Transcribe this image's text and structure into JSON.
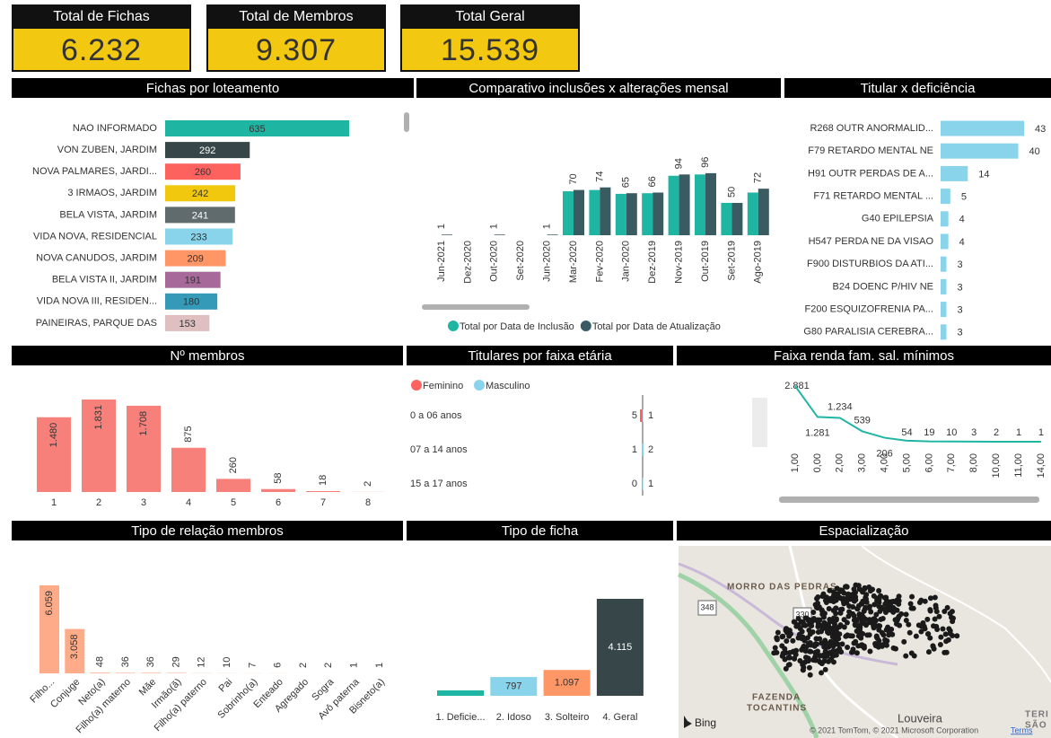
{
  "cards": [
    {
      "title": "Total de Fichas",
      "value": "6.232"
    },
    {
      "title": "Total de Membros",
      "value": "9.307"
    },
    {
      "title": "Total Geral",
      "value": "15.539"
    }
  ],
  "chart_data": [
    {
      "type": "bar",
      "orientation": "horizontal",
      "title": "Fichas por loteamento",
      "categories": [
        "NAO INFORMADO",
        "VON ZUBEN, JARDIM",
        "NOVA PALMARES, JARDI...",
        "3 IRMAOS, JARDIM",
        "BELA VISTA, JARDIM",
        "VIDA NOVA, RESIDENCIAL",
        "NOVA CANUDOS, JARDIM",
        "BELA VISTA II, JARDIM",
        "VIDA NOVA III, RESIDEN...",
        "PAINEIRAS, PARQUE DAS"
      ],
      "values": [
        635,
        292,
        260,
        242,
        241,
        233,
        209,
        191,
        180,
        153
      ],
      "colors": [
        "#1fb5a3",
        "#374649",
        "#fd625e",
        "#f2c80f",
        "#5f6b6d",
        "#8ad4eb",
        "#fe9666",
        "#a66999",
        "#3599b8",
        "#dfbfbf"
      ]
    },
    {
      "type": "bar",
      "orientation": "vertical",
      "title": "Comparativo inclusões x alterações mensal",
      "categories": [
        "Jun-2021",
        "Dez-2020",
        "Out-2020",
        "Set-2020",
        "Jun-2020",
        "Mar-2020",
        "Fev-2020",
        "Jan-2020",
        "Dez-2019",
        "Nov-2019",
        "Out-2019",
        "Set-2019",
        "Ago-2019"
      ],
      "series": [
        {
          "name": "Total por Data de Inclusão",
          "color": "#1fb5a3",
          "values": [
            null,
            null,
            null,
            null,
            null,
            68,
            70,
            64,
            65,
            92,
            94,
            50,
            66
          ]
        },
        {
          "name": "Total por Data de Atualização",
          "color": "#3b5b63",
          "values": [
            1,
            null,
            1,
            null,
            1,
            70,
            74,
            65,
            66,
            94,
            96,
            50,
            72
          ]
        }
      ],
      "legend": "bottom"
    },
    {
      "type": "bar",
      "orientation": "horizontal",
      "title": "Titular x deficiência",
      "categories": [
        "R268 OUTR ANORMALID...",
        "F79 RETARDO MENTAL NE",
        "H91 OUTR PERDAS DE A...",
        "F71 RETARDO MENTAL ...",
        "G40 EPILEPSIA",
        "H547 PERDA NE DA VISAO",
        "F900 DISTURBIOS DA ATI...",
        "B24 DOENC P/HIV NE",
        "F200 ESQUIZOFRENIA PA...",
        "G80 PARALISIA CEREBRA..."
      ],
      "values": [
        43,
        40,
        14,
        5,
        4,
        4,
        3,
        3,
        3,
        3
      ],
      "color": "#8ad4eb"
    },
    {
      "type": "bar",
      "orientation": "vertical",
      "title": "Nº membros",
      "categories": [
        "1",
        "2",
        "3",
        "4",
        "5",
        "6",
        "7",
        "8"
      ],
      "values": [
        1480,
        1831,
        1708,
        875,
        260,
        58,
        18,
        2
      ],
      "value_labels": [
        "1.480",
        "1.831",
        "1.708",
        "875",
        "260",
        "58",
        "18",
        "2"
      ],
      "color": "#f8807a"
    },
    {
      "type": "diverging",
      "title": "Titulares por faixa etária",
      "categories": [
        "0 a 06 anos",
        "07 a 14 anos",
        "15 a 17 anos"
      ],
      "series": [
        {
          "name": "Feminino",
          "color": "#fd625e",
          "values": [
            5,
            1,
            0
          ]
        },
        {
          "name": "Masculino",
          "color": "#8ad4eb",
          "values": [
            1,
            2,
            1
          ]
        }
      ],
      "legend": "top"
    },
    {
      "type": "line",
      "title": "Faixa renda fam. sal. mínimos",
      "categories": [
        "1,00",
        "0,00",
        "2,00",
        "3,00",
        "4,00",
        "5,00",
        "6,00",
        "7,00",
        "8,00",
        "10,00",
        "11,00",
        "14,00"
      ],
      "values": [
        2881,
        1281,
        1234,
        539,
        206,
        54,
        19,
        10,
        3,
        2,
        1,
        1
      ],
      "value_labels": [
        "2.881",
        "1.281",
        "1.234",
        "539",
        "206",
        "54",
        "19",
        "10",
        "3",
        "2",
        "1",
        "1"
      ],
      "color": "#1fb5a3"
    },
    {
      "type": "bar",
      "orientation": "vertical",
      "title": "Tipo de relação membros",
      "categories": [
        "Filho...",
        "Conjuge",
        "Neto(a)",
        "Filho(a) materno",
        "Mãe",
        "Irmão(ã)",
        "Filho(a) paterno",
        "Pai",
        "Sobrinho(a)",
        "Enteado",
        "Agregado",
        "Sogra",
        "Avô paterna",
        "Bisneto(a)"
      ],
      "values": [
        6059,
        3058,
        48,
        36,
        36,
        29,
        12,
        10,
        7,
        6,
        2,
        2,
        1,
        1
      ],
      "value_labels": [
        "6.059",
        "3.058",
        "48",
        "36",
        "36",
        "29",
        "12",
        "10",
        "7",
        "6",
        "2",
        "2",
        "1",
        "1"
      ],
      "color": "#fdab89"
    },
    {
      "type": "bar",
      "orientation": "vertical",
      "title": "Tipo de ficha",
      "categories": [
        "1. Deficie...",
        "2. Idoso",
        "3. Solteiro",
        "4. Geral"
      ],
      "values": [
        230,
        797,
        1097,
        4115
      ],
      "value_labels": [
        null,
        "797",
        "1.097",
        "4.115"
      ],
      "colors": [
        "#1fb5a3",
        "#8ad4eb",
        "#fe9666",
        "#374649"
      ]
    }
  ],
  "map": {
    "title": "Espacialização",
    "places": [
      "MORRO DAS PEDRAS",
      "FAZENDA",
      "TOCANTINS",
      "Louveira",
      "TERI",
      "SÃO I"
    ],
    "roads": [
      "348",
      "330"
    ],
    "logo": "Bing",
    "attribution": "© 2021 TomTom, © 2021 Microsoft Corporation",
    "terms": "Terms"
  }
}
